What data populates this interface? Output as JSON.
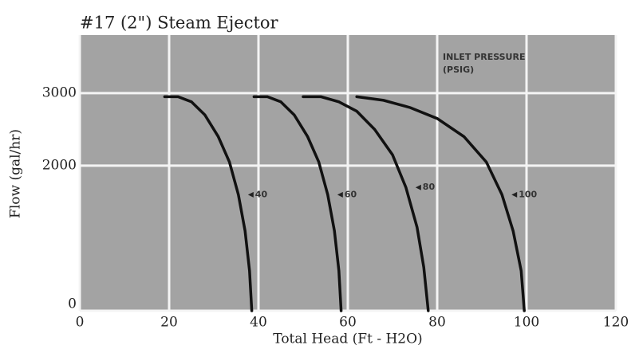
{
  "chart_data": {
    "type": "line",
    "title": "#17 (2\") Steam Ejector",
    "x_label": "Total Head (Ft - H2O)",
    "y_label": "Flow (gal/hr)",
    "annotation": [
      "INLET PRESSURE",
      "(PSIG)"
    ],
    "xlim": [
      0,
      120
    ],
    "xticks": [
      0,
      20,
      40,
      60,
      80,
      100,
      120
    ],
    "ylim": [
      0,
      3800
    ],
    "yticks": [
      0,
      2000,
      3000
    ],
    "grid": true,
    "series": [
      {
        "name": "40",
        "color": "#111111",
        "x": [
          19,
          22,
          25,
          28,
          31,
          33.5,
          35.5,
          37,
          38,
          38.5
        ],
        "values": [
          2950,
          2950,
          2880,
          2700,
          2400,
          2050,
          1600,
          1100,
          550,
          0
        ]
      },
      {
        "name": "60",
        "color": "#111111",
        "x": [
          39,
          42,
          45,
          48,
          51,
          53.5,
          55.5,
          57,
          58,
          58.5
        ],
        "values": [
          2950,
          2950,
          2880,
          2700,
          2400,
          2050,
          1600,
          1100,
          550,
          0
        ]
      },
      {
        "name": "80",
        "color": "#111111",
        "x": [
          50,
          54,
          58,
          62,
          66,
          70,
          73,
          75.5,
          77,
          78
        ],
        "values": [
          2950,
          2950,
          2880,
          2750,
          2500,
          2150,
          1700,
          1150,
          600,
          0
        ]
      },
      {
        "name": "100",
        "color": "#111111",
        "x": [
          62,
          68,
          74,
          80,
          86,
          91,
          94.5,
          97,
          98.8,
          99.5
        ],
        "values": [
          2950,
          2900,
          2800,
          2650,
          2400,
          2050,
          1600,
          1100,
          550,
          0
        ]
      }
    ]
  }
}
